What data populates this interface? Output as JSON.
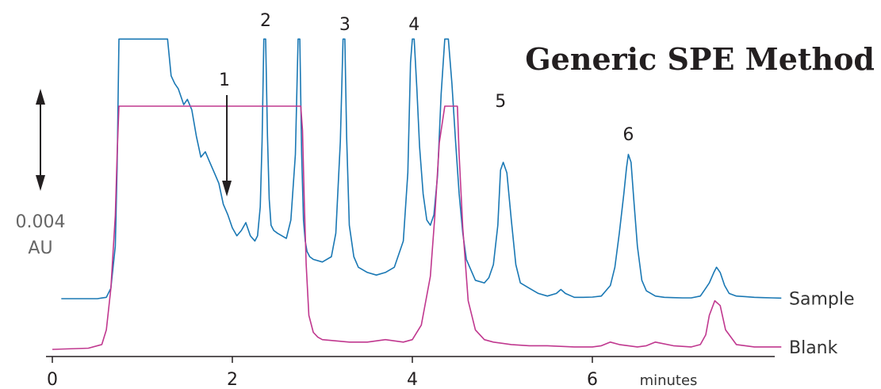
{
  "chart_data": {
    "type": "line",
    "title": "Generic SPE Method",
    "xlabel": "minutes",
    "ylabel": "",
    "scale_bar": {
      "value": "0.004",
      "unit": "AU"
    },
    "x_ticks": [
      "0",
      "2",
      "4",
      "6"
    ],
    "xlim": [
      0,
      8.1
    ],
    "peak_labels": [
      {
        "label": "1",
        "x": 1.93,
        "arrow": true
      },
      {
        "label": "2",
        "x": 2.37
      },
      {
        "label": "3",
        "x": 3.25
      },
      {
        "label": "4",
        "x": 4.02
      },
      {
        "label": "5",
        "x": 4.98
      },
      {
        "label": "6",
        "x": 6.4
      }
    ],
    "series": [
      {
        "name": "Sample",
        "color": "#1a78b4",
        "x": [
          0.1,
          0.5,
          0.6,
          0.65,
          0.7,
          0.72,
          0.74,
          1.28,
          1.32,
          1.36,
          1.4,
          1.44,
          1.46,
          1.5,
          1.55,
          1.6,
          1.65,
          1.7,
          1.75,
          1.8,
          1.85,
          1.9,
          1.95,
          2.0,
          2.05,
          2.1,
          2.15,
          2.2,
          2.25,
          2.28,
          2.31,
          2.33,
          2.35,
          2.37,
          2.39,
          2.41,
          2.43,
          2.46,
          2.5,
          2.6,
          2.65,
          2.7,
          2.73,
          2.75,
          2.77,
          2.79,
          2.81,
          2.83,
          2.86,
          2.9,
          3.0,
          3.1,
          3.15,
          3.2,
          3.23,
          3.25,
          3.27,
          3.3,
          3.35,
          3.4,
          3.5,
          3.6,
          3.7,
          3.8,
          3.9,
          3.95,
          3.98,
          4.0,
          4.02,
          4.05,
          4.08,
          4.12,
          4.16,
          4.2,
          4.24,
          4.28,
          4.32,
          4.36,
          4.4,
          4.44,
          4.48,
          4.52,
          4.56,
          4.6,
          4.7,
          4.8,
          4.85,
          4.9,
          4.95,
          4.98,
          5.01,
          5.05,
          5.1,
          5.15,
          5.2,
          5.3,
          5.4,
          5.5,
          5.6,
          5.65,
          5.7,
          5.8,
          5.9,
          6.0,
          6.1,
          6.2,
          6.25,
          6.3,
          6.35,
          6.38,
          6.4,
          6.43,
          6.46,
          6.5,
          6.55,
          6.6,
          6.7,
          6.8,
          6.9,
          7.0,
          7.1,
          7.2,
          7.25,
          7.3,
          7.35,
          7.38,
          7.42,
          7.47,
          7.52,
          7.6,
          7.7,
          7.8,
          7.9,
          8.0,
          8.1
        ],
        "y": [
          0.0,
          0.0,
          0.005,
          0.04,
          0.2,
          0.5,
          0.99,
          0.99,
          0.85,
          0.82,
          0.8,
          0.76,
          0.74,
          0.76,
          0.72,
          0.62,
          0.54,
          0.56,
          0.52,
          0.48,
          0.44,
          0.36,
          0.32,
          0.27,
          0.24,
          0.26,
          0.29,
          0.24,
          0.22,
          0.24,
          0.35,
          0.6,
          0.99,
          0.99,
          0.62,
          0.38,
          0.28,
          0.26,
          0.25,
          0.23,
          0.3,
          0.55,
          0.99,
          0.99,
          0.55,
          0.3,
          0.22,
          0.18,
          0.16,
          0.15,
          0.14,
          0.16,
          0.25,
          0.6,
          0.99,
          0.99,
          0.62,
          0.28,
          0.16,
          0.12,
          0.1,
          0.09,
          0.1,
          0.12,
          0.22,
          0.48,
          0.9,
          0.99,
          0.99,
          0.8,
          0.58,
          0.4,
          0.3,
          0.28,
          0.32,
          0.47,
          0.78,
          0.99,
          0.99,
          0.82,
          0.6,
          0.4,
          0.25,
          0.15,
          0.07,
          0.06,
          0.08,
          0.13,
          0.28,
          0.49,
          0.52,
          0.48,
          0.3,
          0.13,
          0.06,
          0.04,
          0.02,
          0.01,
          0.02,
          0.035,
          0.02,
          0.005,
          0.005,
          0.006,
          0.01,
          0.05,
          0.12,
          0.25,
          0.4,
          0.5,
          0.55,
          0.52,
          0.38,
          0.2,
          0.07,
          0.03,
          0.01,
          0.005,
          0.004,
          0.003,
          0.003,
          0.01,
          0.035,
          0.06,
          0.1,
          0.12,
          0.1,
          0.05,
          0.02,
          0.01,
          0.008,
          0.005,
          0.004,
          0.003,
          0.002
        ]
      },
      {
        "name": "Blank",
        "color": "#c0388f",
        "x": [
          0.0,
          0.4,
          0.55,
          0.6,
          0.65,
          0.7,
          0.72,
          0.74,
          2.76,
          2.78,
          2.8,
          2.82,
          2.85,
          2.9,
          2.95,
          3.0,
          3.3,
          3.5,
          3.7,
          3.9,
          4.0,
          4.1,
          4.2,
          4.25,
          4.3,
          4.36,
          4.5,
          4.52,
          4.56,
          4.62,
          4.7,
          4.8,
          4.9,
          5.1,
          5.3,
          5.5,
          5.8,
          6.0,
          6.1,
          6.2,
          6.3,
          6.5,
          6.6,
          6.7,
          6.9,
          7.1,
          7.2,
          7.26,
          7.3,
          7.36,
          7.42,
          7.48,
          7.6,
          7.8,
          8.1
        ],
        "y": [
          0.0,
          0.005,
          0.02,
          0.08,
          0.25,
          0.55,
          0.8,
          1.0,
          1.0,
          0.9,
          0.6,
          0.35,
          0.14,
          0.07,
          0.05,
          0.04,
          0.03,
          0.03,
          0.04,
          0.03,
          0.04,
          0.1,
          0.3,
          0.55,
          0.85,
          1.0,
          1.0,
          0.8,
          0.5,
          0.2,
          0.08,
          0.04,
          0.03,
          0.02,
          0.015,
          0.015,
          0.01,
          0.01,
          0.015,
          0.03,
          0.02,
          0.01,
          0.015,
          0.03,
          0.015,
          0.01,
          0.02,
          0.06,
          0.14,
          0.2,
          0.18,
          0.08,
          0.02,
          0.01,
          0.01
        ]
      }
    ]
  }
}
